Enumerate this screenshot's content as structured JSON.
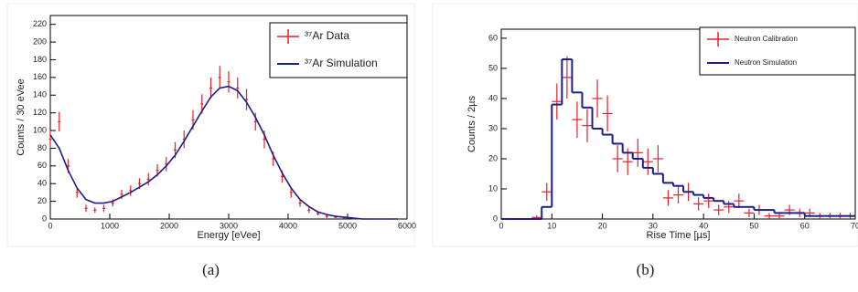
{
  "chart_data": [
    {
      "type": "line",
      "caption": "(a)",
      "xlabel": "Energy [eVee]",
      "ylabel": "Counts / 30 eVee",
      "xlim": [
        0,
        6000
      ],
      "xticks": [
        0,
        1000,
        2000,
        3000,
        4000,
        5000,
        6000
      ],
      "ylim": [
        0,
        230
      ],
      "yticks": [
        0,
        20,
        40,
        60,
        80,
        100,
        120,
        140,
        160,
        180,
        200,
        220
      ],
      "x": [
        0,
        150,
        300,
        450,
        600,
        750,
        900,
        1050,
        1200,
        1350,
        1500,
        1650,
        1800,
        1950,
        2100,
        2250,
        2400,
        2550,
        2700,
        2850,
        3000,
        3150,
        3300,
        3450,
        3600,
        3750,
        3900,
        4050,
        4200,
        4350,
        4500,
        4650,
        4800,
        4950,
        5100,
        5250,
        5400,
        5550,
        5700,
        5850
      ],
      "series": [
        {
          "name": "³⁷Ar Data",
          "color": "#e8202a",
          "kind": "errorbar",
          "values": [
            90,
            110,
            60,
            30,
            12,
            10,
            12,
            18,
            28,
            32,
            40,
            45,
            55,
            62,
            78,
            90,
            112,
            130,
            148,
            160,
            155,
            148,
            135,
            110,
            90,
            68,
            48,
            30,
            18,
            10,
            6,
            3,
            2,
            1,
            0,
            0,
            0,
            0,
            0,
            0
          ],
          "errors": [
            10,
            11,
            8,
            6,
            4,
            3,
            4,
            4,
            5,
            6,
            6,
            7,
            7,
            8,
            9,
            10,
            11,
            11,
            12,
            13,
            12,
            12,
            12,
            10,
            10,
            8,
            7,
            6,
            4,
            3,
            2,
            2,
            1,
            1,
            0,
            0,
            0,
            0,
            0,
            0
          ]
        },
        {
          "name": "³⁷Ar Simulation",
          "color": "#1c1f8a",
          "kind": "line",
          "values": [
            95,
            80,
            55,
            35,
            22,
            18,
            18,
            20,
            25,
            30,
            36,
            42,
            50,
            60,
            72,
            88,
            105,
            122,
            138,
            148,
            150,
            145,
            132,
            115,
            95,
            72,
            52,
            35,
            22,
            14,
            8,
            5,
            3,
            2,
            1,
            0,
            0,
            0,
            0,
            0
          ]
        }
      ]
    },
    {
      "type": "histogram",
      "caption": "(b)",
      "xlabel": "Rise Time [µs]",
      "ylabel": "Counts / 2µs",
      "xlim": [
        0,
        70
      ],
      "xticks": [
        0,
        10,
        20,
        30,
        40,
        50,
        60,
        70
      ],
      "ylim": [
        0,
        63
      ],
      "yticks": [
        0,
        10,
        20,
        30,
        40,
        50,
        60
      ],
      "series": [
        {
          "name": "Neutron Calibration",
          "color": "#e8202a",
          "kind": "errorbar",
          "x": [
            7,
            9,
            11,
            13,
            15,
            17,
            19,
            21,
            23,
            25,
            27,
            29,
            31,
            33,
            35,
            37,
            39,
            41,
            43,
            45,
            47,
            49,
            51,
            53,
            55,
            57,
            59,
            61,
            63,
            65,
            67,
            69
          ],
          "values": [
            0.5,
            9,
            39,
            47,
            33,
            31,
            40,
            35,
            20,
            19,
            22,
            19,
            20,
            7,
            8,
            9,
            5,
            6,
            3,
            4,
            6,
            2,
            3,
            1,
            1,
            3,
            2,
            2,
            1,
            1,
            1,
            1
          ],
          "errors": [
            0.7,
            3,
            6,
            7,
            6,
            5.5,
            6.3,
            6,
            4.5,
            4.4,
            4.7,
            4.4,
            4.5,
            2.6,
            2.8,
            3,
            2.2,
            2.4,
            1.7,
            2,
            2.4,
            1.4,
            1.7,
            1,
            1,
            1.7,
            1.4,
            1.4,
            1,
            1,
            1,
            1
          ]
        },
        {
          "name": "Neutron Simulation",
          "color": "#1c1f8a",
          "kind": "step",
          "bins": [
            0,
            2,
            4,
            6,
            8,
            10,
            12,
            14,
            16,
            18,
            20,
            22,
            24,
            26,
            28,
            30,
            32,
            34,
            36,
            38,
            40,
            42,
            44,
            46,
            48,
            50,
            52,
            54,
            56,
            58,
            60,
            62,
            64,
            66,
            68,
            70
          ],
          "values": [
            0,
            0,
            0,
            0,
            4,
            38,
            53,
            42,
            37,
            30,
            28,
            25,
            22,
            20,
            17,
            15,
            12,
            11,
            9,
            8,
            7,
            6,
            5,
            4,
            4,
            3,
            3,
            2,
            2,
            2,
            1,
            1,
            1,
            1,
            1
          ]
        }
      ]
    }
  ]
}
